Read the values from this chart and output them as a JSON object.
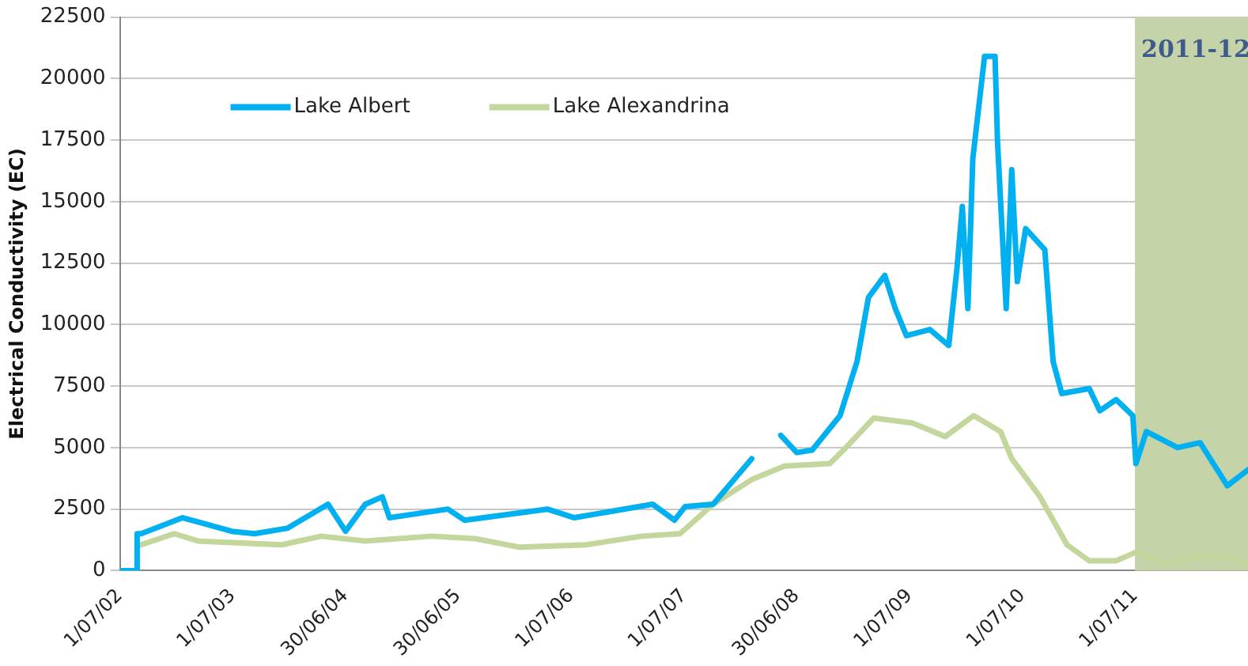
{
  "chart_data": {
    "type": "line",
    "ylabel": "Electrical Conductivity (EC)",
    "xlim": [
      "2002-07-01",
      "2012-07-01"
    ],
    "xticks": [
      {
        "value": "2002-07-01",
        "label": "1/07/02"
      },
      {
        "value": "2003-07-01",
        "label": "1/07/03"
      },
      {
        "value": "2004-06-30",
        "label": "30/06/04"
      },
      {
        "value": "2005-06-30",
        "label": "30/06/05"
      },
      {
        "value": "2006-07-01",
        "label": "1/07/06"
      },
      {
        "value": "2007-07-01",
        "label": "1/07/07"
      },
      {
        "value": "2008-06-30",
        "label": "30/06/08"
      },
      {
        "value": "2009-07-01",
        "label": "1/07/09"
      },
      {
        "value": "2010-07-01",
        "label": "1/07/10"
      },
      {
        "value": "2011-07-01",
        "label": "1/07/11"
      }
    ],
    "ylim": [
      0,
      22500
    ],
    "yticks": [
      0,
      2500,
      5000,
      7500,
      10000,
      12500,
      15000,
      17500,
      20000,
      22500
    ],
    "grid": "y",
    "legend": "top left",
    "line_style": "solid",
    "bands": [
      {
        "axis": "x",
        "from": "2011-07-01",
        "to": "2012-07-01",
        "label": "2011-12",
        "color": "#c4d4a8"
      }
    ],
    "series": [
      {
        "name": "Lake Albert",
        "color": "#00b0f0",
        "x": [
          "2002-07-01",
          "2002-08-25",
          "2002-08-26",
          "2002-09-08",
          "2003-01-20",
          "2003-06-28",
          "2003-09-10",
          "2003-12-25",
          "2004-05-05",
          "2004-07-01",
          "2004-09-03",
          "2004-10-28",
          "2004-11-20",
          "2005-05-28",
          "2005-07-21",
          "2006-04-15",
          "2006-07-12",
          "2007-03-22",
          "2007-06-01",
          "2007-07-05",
          "2007-10-04",
          "2008-02-06",
          "2008-03-15",
          "2008-05-10",
          "2008-07-01",
          "2008-08-20",
          "2008-11-18",
          "2009-01-12",
          "2009-02-18",
          "2009-04-12",
          "2009-05-16",
          "2009-06-21",
          "2009-09-05",
          "2009-11-05",
          "2009-12-01",
          "2009-12-19",
          "2010-01-06",
          "2010-01-22",
          "2010-03-01",
          "2010-04-04",
          "2010-04-12",
          "2010-05-10",
          "2010-05-28",
          "2010-06-15",
          "2010-07-12",
          "2010-09-12",
          "2010-10-09",
          "2010-11-06",
          "2011-02-03",
          "2011-03-09",
          "2011-05-01",
          "2011-06-24",
          "2011-07-04",
          "2011-08-07",
          "2011-11-16",
          "2012-01-28",
          "2012-04-25",
          "2012-07-01"
        ],
        "values": [
          0,
          0,
          1500,
          1500,
          2150,
          1600,
          1500,
          1720,
          2700,
          1600,
          2700,
          3000,
          2150,
          2500,
          2050,
          2500,
          2150,
          2700,
          2050,
          2600,
          2700,
          4550,
          null,
          5500,
          4800,
          4900,
          6300,
          8500,
          11100,
          12000,
          10650,
          9550,
          9800,
          9150,
          12200,
          14800,
          10650,
          16750,
          20900,
          20900,
          17400,
          10650,
          16300,
          11750,
          13900,
          13050,
          8500,
          7200,
          7400,
          6500,
          6950,
          6300,
          4350,
          5650,
          5000,
          5200,
          3450,
          4100
        ]
      },
      {
        "name": "Lake Alexandrina",
        "color": "#c3d69b",
        "x": [
          "2002-07-01",
          "2002-08-25",
          "2002-08-26",
          "2002-12-24",
          "2003-03-13",
          "2003-12-07",
          "2004-04-13",
          "2004-09-03",
          "2005-04-04",
          "2005-08-25",
          "2006-01-16",
          "2006-08-19",
          "2007-02-15",
          "2007-06-19",
          "2007-10-04",
          "2008-02-06",
          "2008-05-22",
          "2008-10-16",
          "2008-12-07",
          "2009-03-07",
          "2009-07-10",
          "2009-10-25",
          "2010-01-25",
          "2010-04-22",
          "2010-05-28",
          "2010-08-25",
          "2010-11-23",
          "2011-02-03",
          "2011-05-01",
          "2011-07-04",
          "2011-09-25",
          "2012-03-04",
          "2012-07-01"
        ],
        "values": [
          0,
          0,
          1000,
          1500,
          1200,
          1050,
          1400,
          1200,
          1400,
          1300,
          950,
          1050,
          1400,
          1500,
          2700,
          3700,
          4250,
          4350,
          5000,
          6200,
          6000,
          5450,
          6300,
          5650,
          4550,
          3050,
          1050,
          400,
          400,
          750,
          300,
          650,
          300
        ]
      }
    ]
  }
}
